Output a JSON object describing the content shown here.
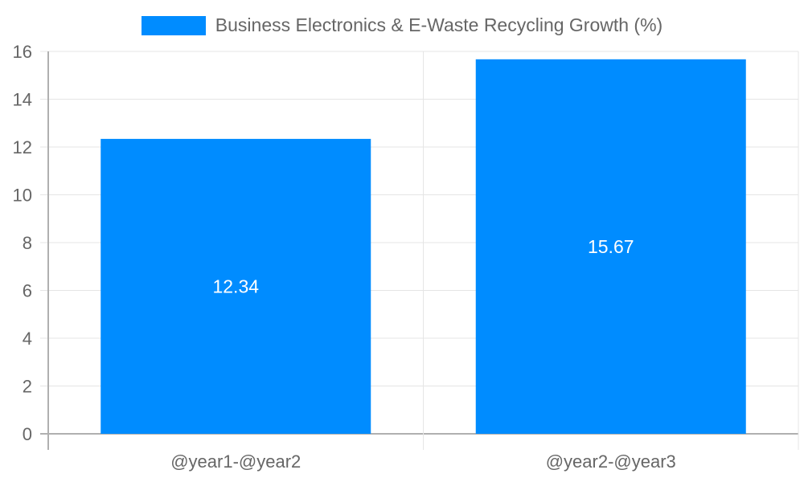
{
  "chart_data": {
    "type": "bar",
    "title": "",
    "categories": [
      "@year1-@year2",
      "@year2-@year3"
    ],
    "series": [
      {
        "name": "Business Electronics & E-Waste Recycling Growth (%)",
        "values": [
          12.34,
          15.67
        ],
        "color": "#008cff"
      }
    ],
    "values": [
      12.34,
      15.67
    ],
    "data_labels": [
      "12.34",
      "15.67"
    ],
    "xlabel": "",
    "ylabel": "",
    "ylim": [
      0,
      16
    ],
    "yticks": [
      0,
      2,
      4,
      6,
      8,
      10,
      12,
      14,
      16
    ],
    "grid": true,
    "legend_position": "top"
  },
  "legend": {
    "label": "Business Electronics & E-Waste Recycling Growth (%)",
    "color": "#008cff"
  },
  "colors": {
    "bar": "#008cff",
    "grid": "#e5e5e5",
    "axis": "#b0b0b0",
    "text": "#666666"
  }
}
